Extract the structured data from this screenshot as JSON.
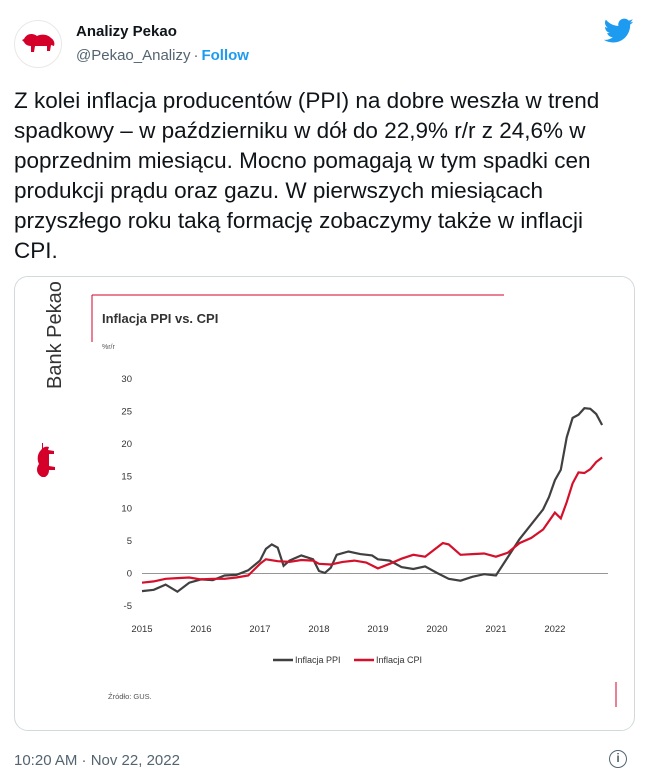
{
  "author": {
    "name": "Analizy Pekao",
    "handle": "@Pekao_Analizy",
    "follow_label": "Follow"
  },
  "icons": {
    "brand": "twitter-bird-icon",
    "info": "info-icon",
    "avatar": "pekao-bison-logo"
  },
  "colors": {
    "accent": "#1d9bf0",
    "ppi": "#404040",
    "cpi": "#d4102a",
    "brand_red": "#d4002a"
  },
  "tweet": {
    "text": "Z kolei inflacja producentów (PPI) na dobre weszła w trend\nspadkowy – w październiku w dół do 22,9% r/r z 24,6% w\npoprzednim miesiącu. Mocno pomagają w tym spadki cen\nprodukcji prądu oraz gazu. W pierwszych miesiącach\nprzyszłego roku taką formację zobaczymy także w inflacji\nCPI.",
    "timestamp": "10:20 AM · Nov 22, 2022"
  },
  "brand_text": "Bank Pekao",
  "chart_data": {
    "type": "line",
    "title": "Inflacja PPI vs. CPI",
    "ylabel": "%r/r",
    "ylim": [
      -5,
      30
    ],
    "yticks": [
      "30",
      "25",
      "20",
      "15",
      "10",
      "5",
      "0",
      "-5"
    ],
    "xlim": [
      2015.0,
      2022.9
    ],
    "xticks": [
      "2015",
      "2016",
      "2017",
      "2018",
      "2019",
      "2020",
      "2021",
      "2022"
    ],
    "source": "Źródło: GUS.",
    "legend_position": "bottom",
    "series": [
      {
        "name": "Inflacja PPI",
        "x": [
          2015.0,
          2015.2,
          2015.4,
          2015.6,
          2015.8,
          2016.0,
          2016.2,
          2016.4,
          2016.6,
          2016.8,
          2017.0,
          2017.1,
          2017.2,
          2017.3,
          2017.4,
          2017.5,
          2017.7,
          2017.9,
          2018.0,
          2018.1,
          2018.2,
          2018.3,
          2018.5,
          2018.7,
          2018.9,
          2019.0,
          2019.2,
          2019.4,
          2019.6,
          2019.8,
          2020.0,
          2020.2,
          2020.4,
          2020.6,
          2020.8,
          2021.0,
          2021.2,
          2021.4,
          2021.6,
          2021.8,
          2021.9,
          2022.0,
          2022.1,
          2022.2,
          2022.3,
          2022.4,
          2022.5,
          2022.6,
          2022.7,
          2022.8
        ],
        "y": [
          -2.7,
          -2.5,
          -1.7,
          -2.8,
          -1.4,
          -0.9,
          -1.0,
          -0.3,
          -0.2,
          0.5,
          2.0,
          3.8,
          4.5,
          4.0,
          1.2,
          2.0,
          2.8,
          2.2,
          0.4,
          0.1,
          0.9,
          2.9,
          3.4,
          3.0,
          2.8,
          2.2,
          2.0,
          1.0,
          0.7,
          1.1,
          0.1,
          -0.8,
          -1.1,
          -0.5,
          -0.1,
          -0.3,
          2.5,
          5.3,
          7.6,
          9.9,
          11.8,
          14.4,
          16.0,
          21.0,
          24.0,
          24.5,
          25.5,
          25.4,
          24.6,
          22.9
        ]
      },
      {
        "name": "Inflacja CPI",
        "x": [
          2015.0,
          2015.2,
          2015.4,
          2015.6,
          2015.8,
          2016.0,
          2016.2,
          2016.4,
          2016.6,
          2016.8,
          2017.0,
          2017.1,
          2017.3,
          2017.5,
          2017.7,
          2017.9,
          2018.0,
          2018.2,
          2018.4,
          2018.6,
          2018.8,
          2019.0,
          2019.2,
          2019.4,
          2019.6,
          2019.8,
          2020.0,
          2020.1,
          2020.2,
          2020.4,
          2020.6,
          2020.8,
          2021.0,
          2021.2,
          2021.4,
          2021.6,
          2021.8,
          2022.0,
          2022.1,
          2022.2,
          2022.3,
          2022.4,
          2022.5,
          2022.6,
          2022.7,
          2022.8
        ],
        "y": [
          -1.4,
          -1.2,
          -0.8,
          -0.7,
          -0.6,
          -0.9,
          -0.8,
          -0.8,
          -0.6,
          -0.3,
          1.5,
          2.2,
          1.9,
          1.8,
          2.1,
          2.0,
          1.5,
          1.4,
          1.8,
          2.0,
          1.7,
          0.8,
          1.5,
          2.3,
          2.9,
          2.6,
          4.0,
          4.7,
          4.5,
          2.9,
          3.0,
          3.1,
          2.6,
          3.2,
          4.7,
          5.5,
          6.8,
          9.4,
          8.5,
          11.0,
          13.9,
          15.6,
          15.5,
          16.1,
          17.2,
          17.9
        ]
      }
    ]
  }
}
